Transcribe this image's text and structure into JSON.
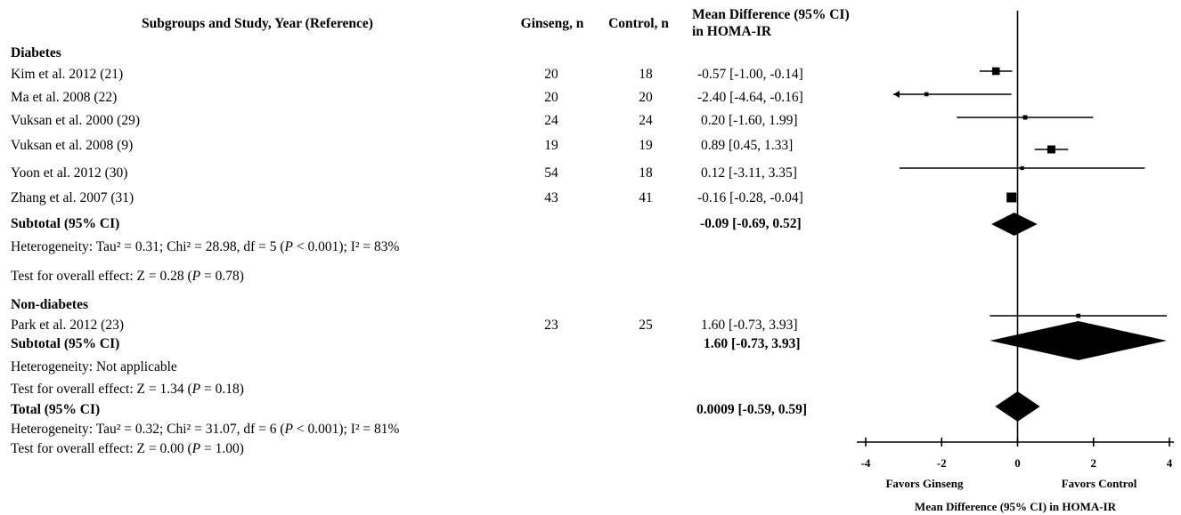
{
  "headers": {
    "study": "Subgroups and Study, Year  (Reference)",
    "ginseng": "Ginseng, n",
    "control": "Control, n",
    "md_line1": "Mean Difference (95% CI)",
    "md_line2": "in HOMA-IR"
  },
  "diabetes": {
    "title": "Diabetes",
    "studies": [
      {
        "name": "Kim et al. 2012 (21)",
        "ginseng": "20",
        "control": "18",
        "ci": "-0.57 [-1.00, -0.14]"
      },
      {
        "name": "Ma et al. 2008 (22)",
        "ginseng": "20",
        "control": "20",
        "ci": "-2.40 [-4.64, -0.16]"
      },
      {
        "name": "Vuksan et al. 2000  (29)",
        "ginseng": "24",
        "control": "24",
        "ci": "0.20 [-1.60, 1.99]"
      },
      {
        "name": "Vuksan et al. 2008  (9)",
        "ginseng": "19",
        "control": "19",
        "ci": "0.89 [0.45, 1.33]"
      },
      {
        "name": "Yoon et al. 2012 (30)",
        "ginseng": "54",
        "control": "18",
        "ci": "0.12 [-3.11, 3.35]"
      },
      {
        "name": "Zhang et al. 2007 (31)",
        "ginseng": "43",
        "control": "41",
        "ci": "-0.16 [-0.28, -0.04]"
      }
    ],
    "subtotal_label": "Subtotal (95% CI)",
    "subtotal_ci": "-0.09 [-0.69, 0.52]",
    "heterogeneity_a": "Heterogeneity: Tau² = 0.31; Chi² = 28.98, df = 5 (",
    "heterogeneity_p": "P",
    "heterogeneity_b": " < 0.001); I² = 83%",
    "overall_a": "Test for overall effect: Z = 0.28 (",
    "overall_p": "P",
    "overall_b": " = 0.78)"
  },
  "nondiabetes": {
    "title": "Non-diabetes",
    "studies": [
      {
        "name": "Park et al. 2012 (23)",
        "ginseng": "23",
        "control": "25",
        "ci": "1.60 [-0.73, 3.93]"
      }
    ],
    "subtotal_label": "Subtotal (95% CI)",
    "subtotal_ci": "1.60 [-0.73, 3.93]",
    "heterogeneity": "Heterogeneity: Not applicable",
    "overall_a": "Test for overall effect: Z = 1.34 (",
    "overall_p": "P",
    "overall_b": " = 0.18)"
  },
  "total": {
    "label": "Total (95% CI)",
    "ci": "0.0009 [-0.59, 0.59]",
    "heterogeneity_a": "Heterogeneity: Tau² = 0.32; Chi² = 31.07, df = 6 (",
    "heterogeneity_p": "P",
    "heterogeneity_b": " < 0.001); I² = 81%",
    "overall_a": "Test for overall effect: Z = 0.00 (",
    "overall_p": "P",
    "overall_b": " = 1.00)"
  },
  "chart_data": {
    "type": "forest",
    "xlim": [
      -4,
      4
    ],
    "ticks": [
      -4,
      -2,
      0,
      2,
      4
    ],
    "tick_labels": [
      "-4",
      "-2",
      "0",
      "2",
      "4"
    ],
    "favors_left": "Favors Ginseng",
    "favors_right": "Favors Control",
    "xlabel": "Mean Difference (95% CI) in HOMA-IR",
    "studies": [
      {
        "name": "Kim et al. 2012 (21)",
        "md": -0.57,
        "lo": -1.0,
        "hi": -0.14,
        "weight": 0.7
      },
      {
        "name": "Ma et al. 2008 (22)",
        "md": -2.4,
        "lo": -4.64,
        "hi": -0.16,
        "weight": 0.2,
        "clipped_left": true
      },
      {
        "name": "Vuksan et al. 2000  (29)",
        "md": 0.2,
        "lo": -1.6,
        "hi": 1.99,
        "weight": 0.25
      },
      {
        "name": "Vuksan et al. 2008  (9)",
        "md": 0.89,
        "lo": 0.45,
        "hi": 1.33,
        "weight": 0.75
      },
      {
        "name": "Yoon et al. 2012 (30)",
        "md": 0.12,
        "lo": -3.11,
        "hi": 3.35,
        "weight": 0.15
      },
      {
        "name": "Zhang et al. 2007 (31)",
        "md": -0.16,
        "lo": -0.28,
        "hi": -0.04,
        "weight": 1.0
      },
      {
        "name": "Park et al. 2012 (23)",
        "md": 1.6,
        "lo": -0.73,
        "hi": 3.93,
        "weight": 0.2
      }
    ],
    "diamonds": [
      {
        "name": "Diabetes Subtotal",
        "md": -0.09,
        "lo": -0.69,
        "hi": 0.52
      },
      {
        "name": "Non-diabetes Subtotal",
        "md": 1.6,
        "lo": -0.73,
        "hi": 3.93
      },
      {
        "name": "Total",
        "md": 0.0009,
        "lo": -0.59,
        "hi": 0.59
      }
    ]
  }
}
